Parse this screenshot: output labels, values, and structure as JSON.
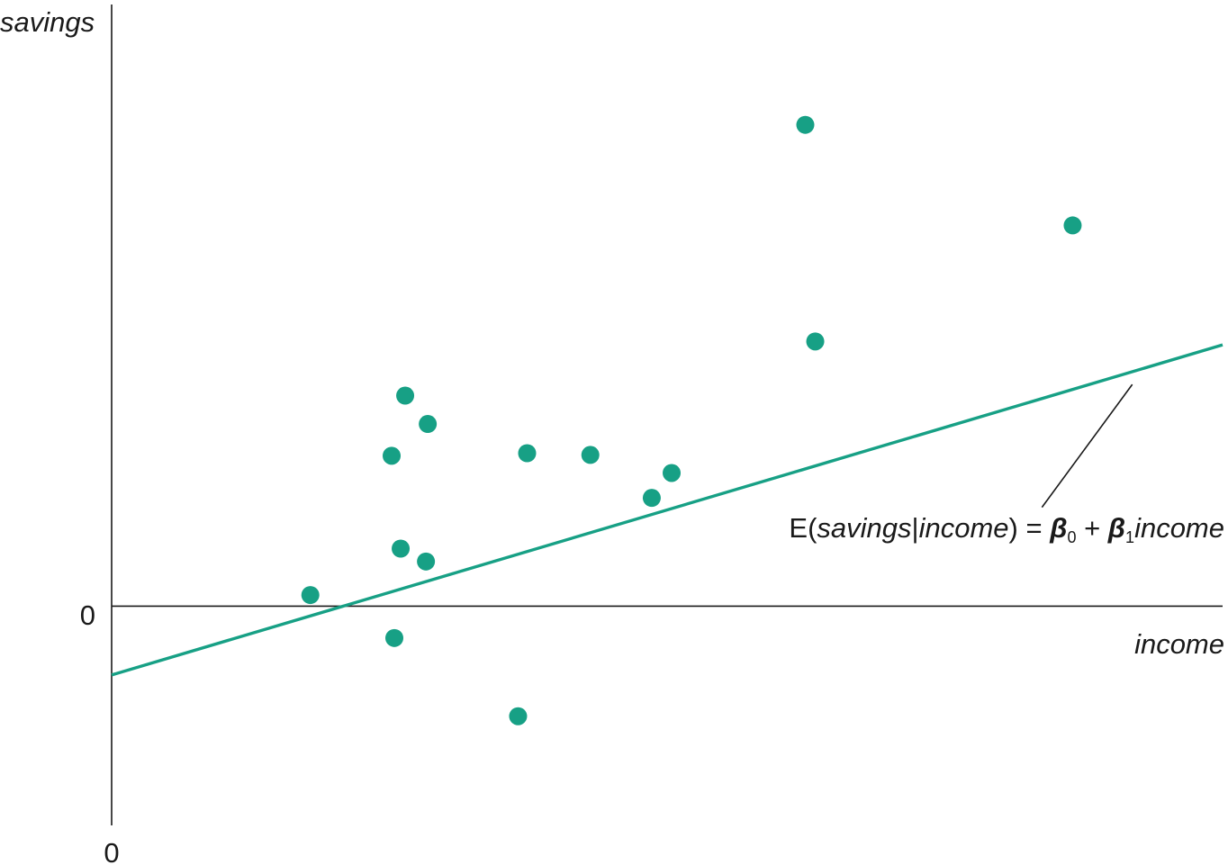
{
  "chart_data": {
    "type": "scatter",
    "title": "",
    "xlabel": "income",
    "ylabel": "savings",
    "x_origin_label": "0",
    "y_origin_label": "0",
    "xlim": [
      0,
      12.3
    ],
    "ylim": [
      -2.55,
      7.0
    ],
    "grid": false,
    "legend": "none",
    "colors": {
      "points": "#17a085",
      "line": "#17a085",
      "axes": "#1a1a1a"
    },
    "points": [
      {
        "x": 2.2,
        "y": 0.13
      },
      {
        "x": 3.1,
        "y": 1.75
      },
      {
        "x": 3.2,
        "y": 0.67
      },
      {
        "x": 3.25,
        "y": 2.45
      },
      {
        "x": 3.5,
        "y": 2.12
      },
      {
        "x": 3.48,
        "y": 0.52
      },
      {
        "x": 3.13,
        "y": -0.37
      },
      {
        "x": 4.6,
        "y": 1.78
      },
      {
        "x": 4.5,
        "y": -1.28
      },
      {
        "x": 5.3,
        "y": 1.76
      },
      {
        "x": 5.98,
        "y": 1.26
      },
      {
        "x": 6.2,
        "y": 1.55
      },
      {
        "x": 7.68,
        "y": 5.6
      },
      {
        "x": 7.79,
        "y": 3.08
      },
      {
        "x": 10.64,
        "y": 4.43
      }
    ],
    "regression_line": {
      "x": [
        0,
        12.3
      ],
      "y": [
        -0.8,
        3.04
      ]
    },
    "annotation": {
      "prefix": "E(",
      "var1": "savings",
      "bar": "|",
      "var2": "income",
      "middle": ") = ",
      "beta": "β",
      "sub0": "0",
      "plus": " + ",
      "sub1": "1",
      "var3": "income",
      "leader_from": [
        10.3,
        1.15
      ],
      "leader_to": [
        11.3,
        2.58
      ]
    }
  }
}
